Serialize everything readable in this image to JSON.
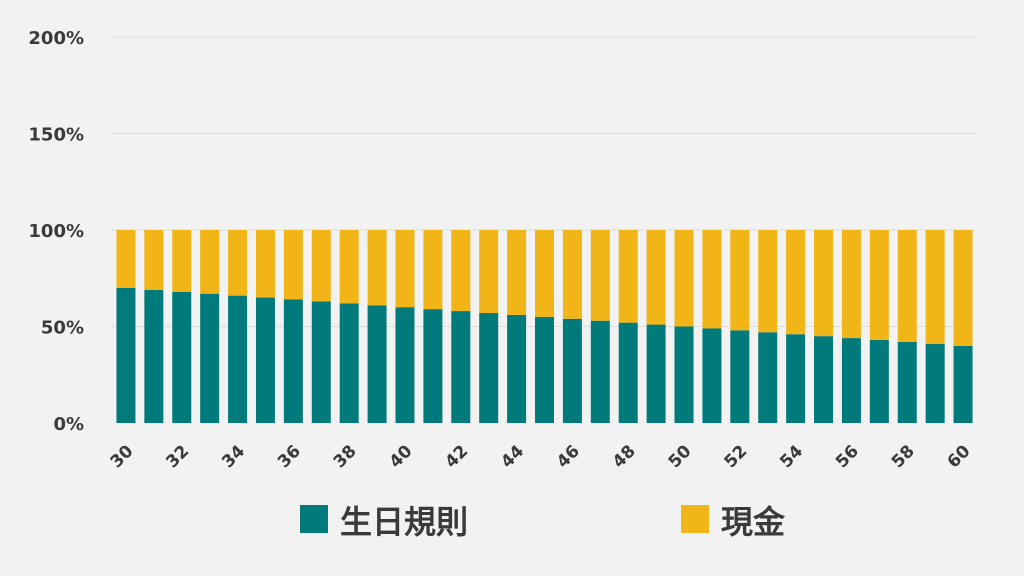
{
  "chart_data": {
    "type": "bar",
    "stacked": true,
    "categories": [
      30,
      31,
      32,
      33,
      34,
      35,
      36,
      37,
      38,
      39,
      40,
      41,
      42,
      43,
      44,
      45,
      46,
      47,
      48,
      49,
      50,
      51,
      52,
      53,
      54,
      55,
      56,
      57,
      58,
      59,
      60
    ],
    "x_tick_labels": [
      "30",
      "32",
      "34",
      "36",
      "38",
      "40",
      "42",
      "44",
      "46",
      "48",
      "50",
      "52",
      "54",
      "56",
      "58",
      "60"
    ],
    "series": [
      {
        "name": "生日規則",
        "color": "#007a7a",
        "values": [
          70,
          69,
          68,
          67,
          66,
          65,
          64,
          63,
          62,
          61,
          60,
          59,
          58,
          57,
          56,
          55,
          54,
          53,
          52,
          51,
          50,
          49,
          48,
          47,
          46,
          45,
          44,
          43,
          42,
          41,
          40
        ]
      },
      {
        "name": "現金",
        "color": "#f2b517",
        "values": [
          30,
          31,
          32,
          33,
          34,
          35,
          36,
          37,
          38,
          39,
          40,
          41,
          42,
          43,
          44,
          45,
          46,
          47,
          48,
          49,
          50,
          51,
          52,
          53,
          54,
          55,
          56,
          57,
          58,
          59,
          60
        ]
      }
    ],
    "y_tick_labels": [
      "0%",
      "50%",
      "100%",
      "150%",
      "200%"
    ],
    "ylim": [
      0,
      200
    ],
    "ylabel": "",
    "xlabel": "",
    "title": "",
    "grid": true,
    "legend_position": "bottom"
  }
}
